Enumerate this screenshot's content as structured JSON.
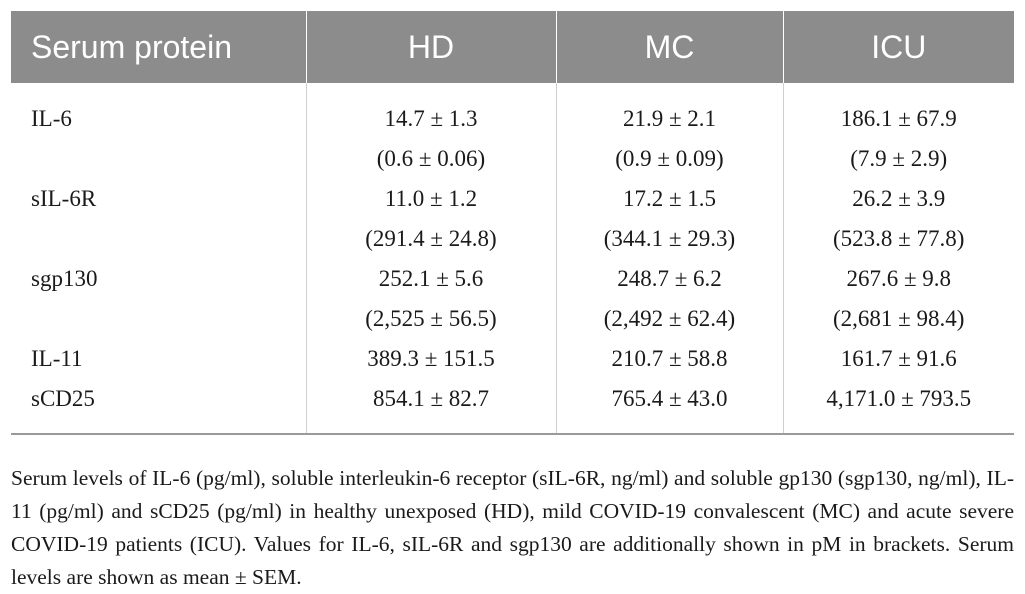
{
  "table": {
    "headers": [
      "Serum protein",
      "HD",
      "MC",
      "ICU"
    ],
    "rows": [
      {
        "label": "IL-6",
        "hd": "14.7 ± 1.3",
        "mc": "21.9 ± 2.1",
        "icu": "186.1 ± 67.9"
      },
      {
        "label": "",
        "hd": "(0.6 ± 0.06)",
        "mc": "(0.9 ± 0.09)",
        "icu": "(7.9 ± 2.9)"
      },
      {
        "label": "sIL-6R",
        "hd": "11.0 ± 1.2",
        "mc": "17.2 ± 1.5",
        "icu": "26.2 ± 3.9"
      },
      {
        "label": "",
        "hd": "(291.4 ± 24.8)",
        "mc": "(344.1 ± 29.3)",
        "icu": "(523.8 ± 77.8)"
      },
      {
        "label": "sgp130",
        "hd": "252.1 ± 5.6",
        "mc": "248.7 ± 6.2",
        "icu": "267.6 ± 9.8"
      },
      {
        "label": "",
        "hd": "(2,525 ± 56.5)",
        "mc": "(2,492 ± 62.4)",
        "icu": "(2,681 ± 98.4)"
      },
      {
        "label": "IL-11",
        "hd": "389.3 ± 151.5",
        "mc": "210.7 ± 58.8",
        "icu": "161.7 ± 91.6"
      },
      {
        "label": "sCD25",
        "hd": "854.1 ± 82.7",
        "mc": "765.4 ± 43.0",
        "icu": "4,171.0 ± 793.5"
      }
    ]
  },
  "caption": "Serum levels of IL-6 (pg/ml), soluble interleukin-6 receptor (sIL-6R, ng/ml) and soluble gp130 (sgp130, ng/ml), IL-11 (pg/ml) and sCD25 (pg/ml) in healthy unexposed (HD), mild COVID-19 convalescent (MC) and acute severe COVID-19 patients (ICU). Values for IL-6, sIL-6R and sgp130 are additionally shown in pM in brackets. Serum levels are shown as mean ± SEM."
}
